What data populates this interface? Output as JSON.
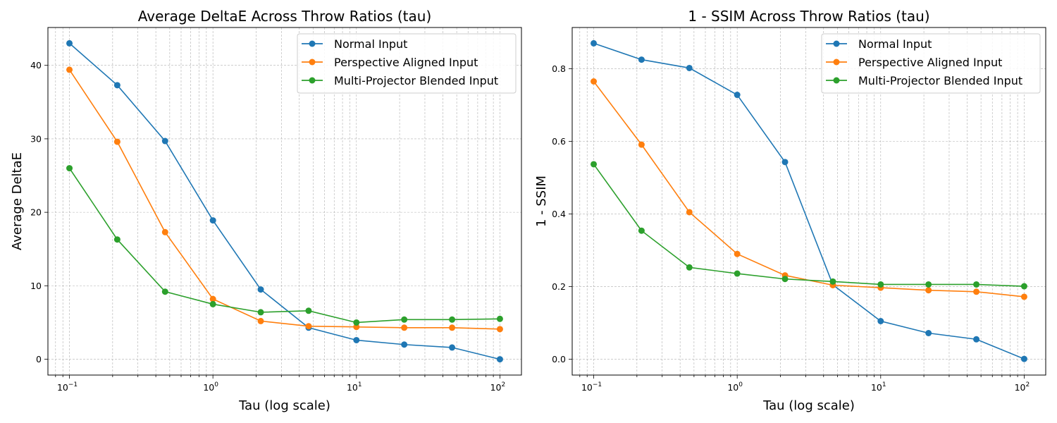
{
  "figure": {
    "background": "#ffffff"
  },
  "chart_data": [
    {
      "type": "line",
      "title": "Average DeltaE Across Throw Ratios (tau)",
      "xlabel": "Tau (log scale)",
      "ylabel": "Average DeltaE",
      "xscale": "log",
      "xlim": [
        0.0708,
        141.3
      ],
      "ylim": [
        -2.15,
        45.15
      ],
      "xticks": [
        0.1,
        1,
        10,
        100
      ],
      "xtick_labels": [
        {
          "base": "10",
          "exp": "−1"
        },
        {
          "base": "10",
          "exp": "0"
        },
        {
          "base": "10",
          "exp": "1"
        },
        {
          "base": "10",
          "exp": "2"
        }
      ],
      "yticks": [
        0,
        10,
        20,
        30,
        40
      ],
      "ytick_labels": [
        "0",
        "10",
        "20",
        "30",
        "40"
      ],
      "grid": true,
      "legend_position": "top-right",
      "x": [
        0.1,
        0.2154,
        0.4642,
        1.0,
        2.154,
        4.642,
        10.0,
        21.54,
        46.42,
        100.0
      ],
      "series": [
        {
          "name": "Normal Input",
          "color": "#1f77b4",
          "values": [
            43.0,
            37.3,
            29.7,
            18.9,
            9.5,
            4.3,
            2.6,
            2.0,
            1.6,
            0.0
          ]
        },
        {
          "name": "Perspective Aligned Input",
          "color": "#ff7f0e",
          "values": [
            39.4,
            29.6,
            17.3,
            8.2,
            5.2,
            4.5,
            4.4,
            4.3,
            4.3,
            4.1
          ]
        },
        {
          "name": "Multi-Projector Blended Input",
          "color": "#2ca02c",
          "values": [
            26.0,
            16.3,
            9.2,
            7.5,
            6.4,
            6.6,
            5.0,
            5.4,
            5.4,
            5.5
          ]
        }
      ]
    },
    {
      "type": "line",
      "title": "1 - SSIM Across Throw Ratios (tau)",
      "xlabel": "Tau (log scale)",
      "ylabel": "1 - SSIM",
      "xscale": "log",
      "xlim": [
        0.0708,
        141.3
      ],
      "ylim": [
        -0.0435,
        0.9135
      ],
      "xticks": [
        0.1,
        1,
        10,
        100
      ],
      "xtick_labels": [
        {
          "base": "10",
          "exp": "−1"
        },
        {
          "base": "10",
          "exp": "0"
        },
        {
          "base": "10",
          "exp": "1"
        },
        {
          "base": "10",
          "exp": "2"
        }
      ],
      "yticks": [
        0.0,
        0.2,
        0.4,
        0.6,
        0.8
      ],
      "ytick_labels": [
        "0.0",
        "0.2",
        "0.4",
        "0.6",
        "0.8"
      ],
      "grid": true,
      "legend_position": "top-right",
      "x": [
        0.1,
        0.2154,
        0.4642,
        1.0,
        2.154,
        4.642,
        10.0,
        21.54,
        46.42,
        100.0
      ],
      "series": [
        {
          "name": "Normal Input",
          "color": "#1f77b4",
          "values": [
            0.87,
            0.825,
            0.802,
            0.728,
            0.543,
            0.205,
            0.105,
            0.072,
            0.055,
            0.001
          ]
        },
        {
          "name": "Perspective Aligned Input",
          "color": "#ff7f0e",
          "values": [
            0.765,
            0.591,
            0.405,
            0.29,
            0.231,
            0.204,
            0.197,
            0.19,
            0.186,
            0.172
          ]
        },
        {
          "name": "Multi-Projector Blended Input",
          "color": "#2ca02c",
          "values": [
            0.537,
            0.354,
            0.253,
            0.236,
            0.221,
            0.214,
            0.206,
            0.206,
            0.206,
            0.201
          ]
        }
      ]
    }
  ]
}
